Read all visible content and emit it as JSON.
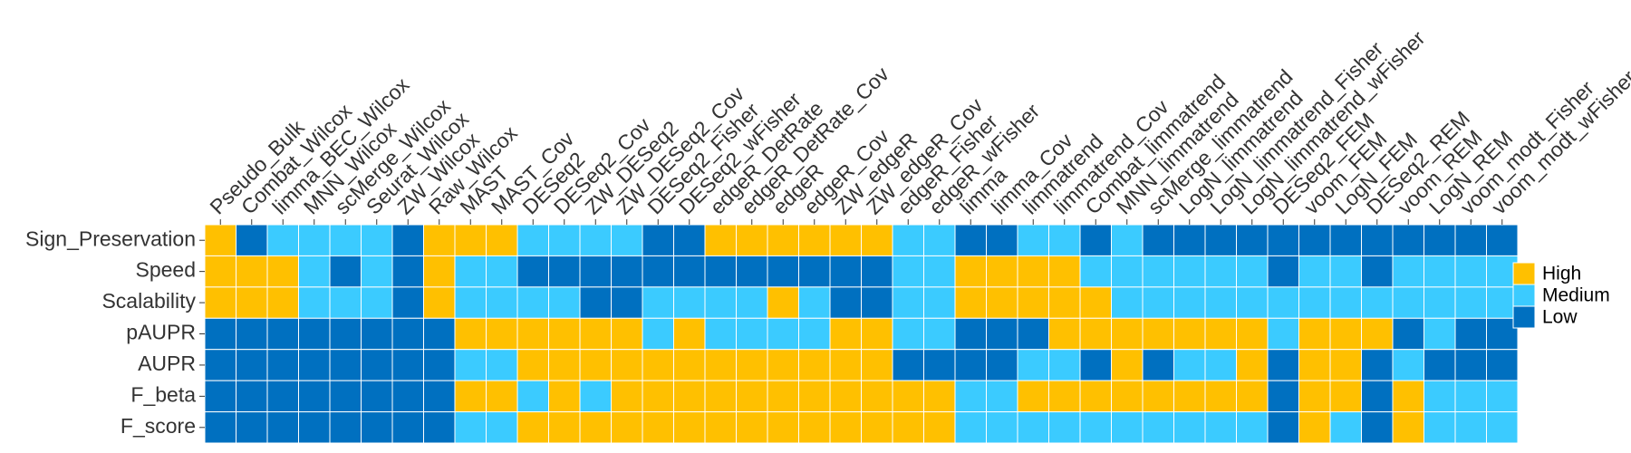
{
  "chart_data": {
    "type": "heatmap",
    "title": "",
    "xlabel": "",
    "ylabel": "",
    "colors": {
      "High": "#FFC000",
      "Medium": "#3BCBFF",
      "Low": "#0070C0"
    },
    "legend": {
      "position": "right",
      "entries": [
        "High",
        "Medium",
        "Low"
      ]
    },
    "x_categories": [
      "Pseudo_Bulk",
      "Combat_Wilcox",
      "limma_BEC_Wilcox",
      "MNN_Wilcox",
      "scMerge_Wilcox",
      "Seurat_Wilcox",
      "ZW_Wilcox",
      "Raw_Wilcox",
      "MAST",
      "MAST_Cov",
      "DESeq2",
      "DESeq2_Cov",
      "ZW_DESeq2",
      "ZW_DESeq2_Cov",
      "DESeq2_Fisher",
      "DESeq2_wFisher",
      "edgeR_DetRate",
      "edgeR_DetRate_Cov",
      "edgeR",
      "edgeR_Cov",
      "ZW_edgeR",
      "ZW_edgeR_Cov",
      "edgeR_Fisher",
      "edgeR_wFisher",
      "limma",
      "limma_Cov",
      "limmatrend",
      "limmatrend_Cov",
      "Combat_limmatrend",
      "MNN_limmatrend",
      "scMerge_limmatrend",
      "LogN_limmatrend",
      "LogN_limmatrend_Fisher",
      "LogN_limmatrend_wFisher",
      "DESeq2_FEM",
      "voom_FEM",
      "LogN_FEM",
      "DESeq2_REM",
      "voom_REM",
      "LogN_REM",
      "voom_modt_Fisher",
      "voom_modt_wFisher"
    ],
    "y_categories": [
      "Sign_Preservation",
      "Speed",
      "Scalability",
      "pAUPR",
      "AUPR",
      "F_beta",
      "F_score"
    ],
    "values": [
      [
        "High",
        "Low",
        "Medium",
        "Medium",
        "Medium",
        "Medium",
        "Low",
        "High",
        "High",
        "High",
        "Medium",
        "Medium",
        "Medium",
        "Medium",
        "Low",
        "Low",
        "High",
        "High",
        "High",
        "High",
        "High",
        "High",
        "Medium",
        "Medium",
        "Low",
        "Low",
        "Medium",
        "Medium",
        "Low",
        "Medium",
        "Low",
        "Low",
        "Low",
        "Low",
        "Low",
        "Low",
        "Low",
        "Low",
        "Low",
        "Low",
        "Low",
        "Low"
      ],
      [
        "High",
        "High",
        "High",
        "Medium",
        "Low",
        "Medium",
        "Low",
        "High",
        "Medium",
        "Medium",
        "Low",
        "Low",
        "Low",
        "Low",
        "Low",
        "Low",
        "Low",
        "Low",
        "Low",
        "Low",
        "Low",
        "Low",
        "Medium",
        "Medium",
        "High",
        "High",
        "High",
        "High",
        "Medium",
        "Medium",
        "Medium",
        "Medium",
        "Medium",
        "Medium",
        "Low",
        "Medium",
        "Medium",
        "Low",
        "Medium",
        "Medium",
        "Medium",
        "Medium"
      ],
      [
        "High",
        "High",
        "High",
        "Medium",
        "Medium",
        "Medium",
        "Low",
        "High",
        "Medium",
        "Medium",
        "Medium",
        "Medium",
        "Low",
        "Low",
        "Medium",
        "Medium",
        "Medium",
        "Medium",
        "High",
        "Medium",
        "Low",
        "Low",
        "Medium",
        "Medium",
        "High",
        "High",
        "High",
        "High",
        "High",
        "Medium",
        "Medium",
        "Medium",
        "Medium",
        "Medium",
        "Medium",
        "Medium",
        "Medium",
        "Medium",
        "Medium",
        "Medium",
        "Medium",
        "Medium"
      ],
      [
        "Low",
        "Low",
        "Low",
        "Low",
        "Low",
        "Low",
        "Low",
        "Low",
        "High",
        "High",
        "High",
        "High",
        "High",
        "High",
        "Medium",
        "High",
        "Medium",
        "Medium",
        "Medium",
        "Medium",
        "High",
        "High",
        "Medium",
        "Medium",
        "Low",
        "Low",
        "Low",
        "High",
        "High",
        "High",
        "High",
        "High",
        "High",
        "High",
        "Medium",
        "High",
        "High",
        "High",
        "Low",
        "Medium",
        "Low",
        "Low"
      ],
      [
        "Low",
        "Low",
        "Low",
        "Low",
        "Low",
        "Low",
        "Low",
        "Low",
        "Medium",
        "Medium",
        "High",
        "High",
        "High",
        "High",
        "High",
        "High",
        "High",
        "High",
        "High",
        "High",
        "High",
        "High",
        "Low",
        "Low",
        "Low",
        "Low",
        "Medium",
        "Medium",
        "Low",
        "High",
        "Low",
        "Medium",
        "Medium",
        "High",
        "Low",
        "High",
        "High",
        "Low",
        "Medium",
        "Low",
        "Low",
        "Low"
      ],
      [
        "Low",
        "Low",
        "Low",
        "Low",
        "Low",
        "Low",
        "Low",
        "Low",
        "High",
        "High",
        "Medium",
        "High",
        "Medium",
        "High",
        "High",
        "High",
        "High",
        "High",
        "High",
        "High",
        "High",
        "High",
        "High",
        "High",
        "Medium",
        "Medium",
        "High",
        "High",
        "High",
        "High",
        "High",
        "High",
        "High",
        "High",
        "Low",
        "High",
        "High",
        "Low",
        "High",
        "Medium",
        "Medium",
        "Medium"
      ],
      [
        "Low",
        "Low",
        "Low",
        "Low",
        "Low",
        "Low",
        "Low",
        "Low",
        "Medium",
        "Medium",
        "High",
        "High",
        "High",
        "High",
        "High",
        "High",
        "High",
        "High",
        "High",
        "High",
        "High",
        "High",
        "High",
        "High",
        "Medium",
        "Medium",
        "Medium",
        "Medium",
        "Medium",
        "Medium",
        "Medium",
        "Medium",
        "Medium",
        "Medium",
        "Low",
        "High",
        "Medium",
        "Low",
        "High",
        "Medium",
        "Medium",
        "Medium"
      ]
    ]
  }
}
